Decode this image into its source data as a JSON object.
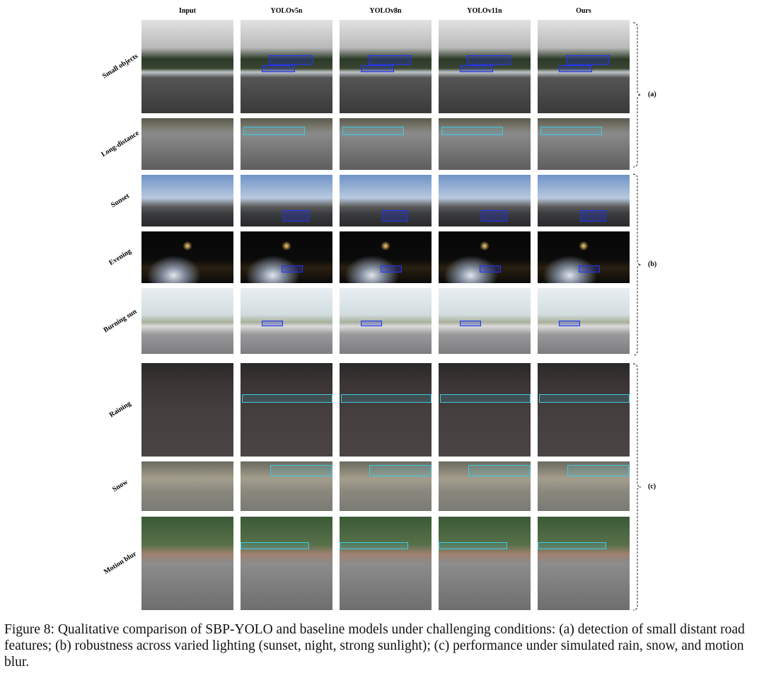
{
  "figure": {
    "columns": [
      "Input",
      "YOLOv5n",
      "YOLOv8n",
      "YOLOv11n",
      "Ours"
    ],
    "rows": [
      "Small objects",
      "Long-distance",
      "Sunset",
      "Evening",
      "Burning sun",
      "Raining",
      "Snow",
      "Motion blur"
    ],
    "groups": [
      "(a)",
      "(b)",
      "(c)"
    ],
    "caption": "Figure 8: Qualitative comparison of SBP-YOLO and baseline models under challenging conditions: (a) detection of small distant road features; (b) robustness across varied lighting (sunset, night, strong sunlight); (c) performance under simulated rain, snow, and motion blur."
  }
}
